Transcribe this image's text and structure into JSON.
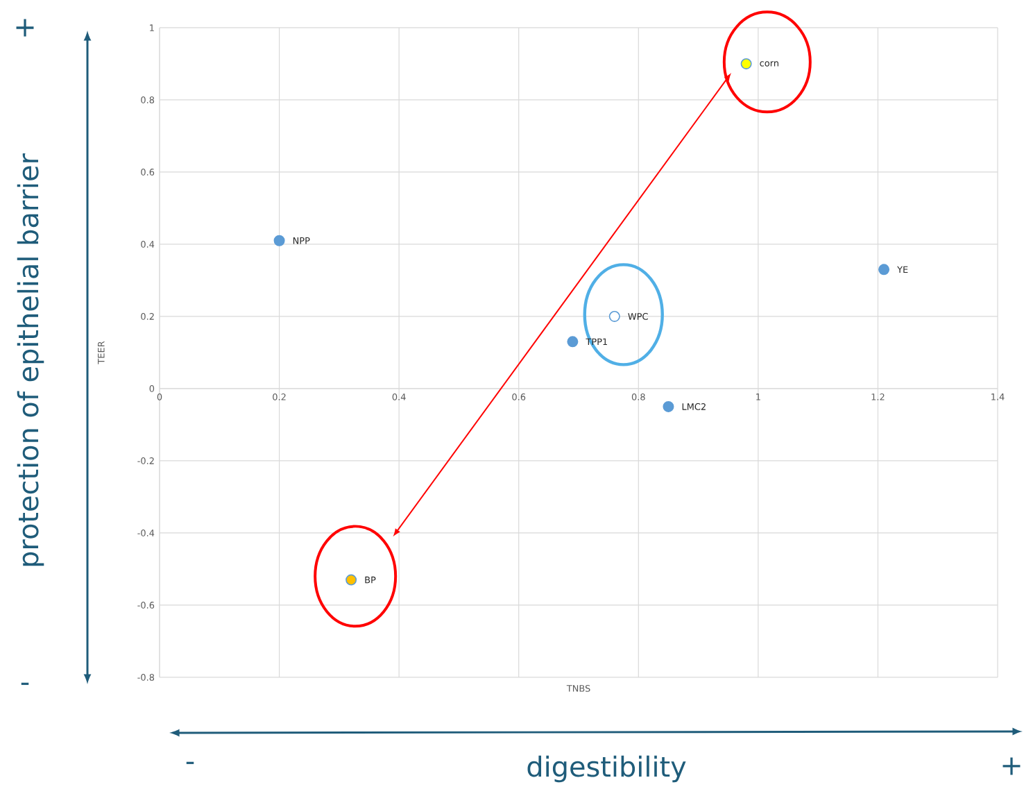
{
  "chart_data": {
    "type": "scatter",
    "xlabel": "TNBS",
    "ylabel": "TEER",
    "x": [
      0.2,
      0.98,
      1.21,
      0.76,
      0.69,
      0.85,
      0.32
    ],
    "values": [
      0.41,
      0.9,
      0.33,
      0.2,
      0.13,
      -0.05,
      -0.53
    ],
    "colors": [
      "#5b9bd5",
      "#ffff00",
      "#5b9bd5",
      "#ffffff",
      "#5b9bd5",
      "#5b9bd5",
      "#ffc000"
    ],
    "xlim": [
      0,
      1.4
    ],
    "ylim": [
      -0.8,
      1
    ],
    "xticks": [
      0,
      0.2,
      0.4,
      0.6,
      0.8,
      1,
      1.2,
      1.4
    ],
    "yticks": [
      -0.8,
      -0.6,
      -0.4,
      -0.2,
      0,
      0.2,
      0.4,
      0.6,
      0.8,
      1
    ],
    "grid": true,
    "marker": "circle",
    "annotations": [
      {
        "text": "NPP",
        "x": 0.2,
        "y": 0.41
      },
      {
        "text": "corn",
        "x": 0.98,
        "y": 0.9
      },
      {
        "text": "YE",
        "x": 1.21,
        "y": 0.33
      },
      {
        "text": "WPC",
        "x": 0.76,
        "y": 0.2
      },
      {
        "text": "TPP1",
        "x": 0.69,
        "y": 0.13
      },
      {
        "text": "LMC2",
        "x": 0.85,
        "y": -0.05
      },
      {
        "text": "BP",
        "x": 0.32,
        "y": -0.53
      },
      "protection of epithelial barrier",
      "+",
      "-",
      "digestibility",
      "-",
      "+"
    ]
  }
}
